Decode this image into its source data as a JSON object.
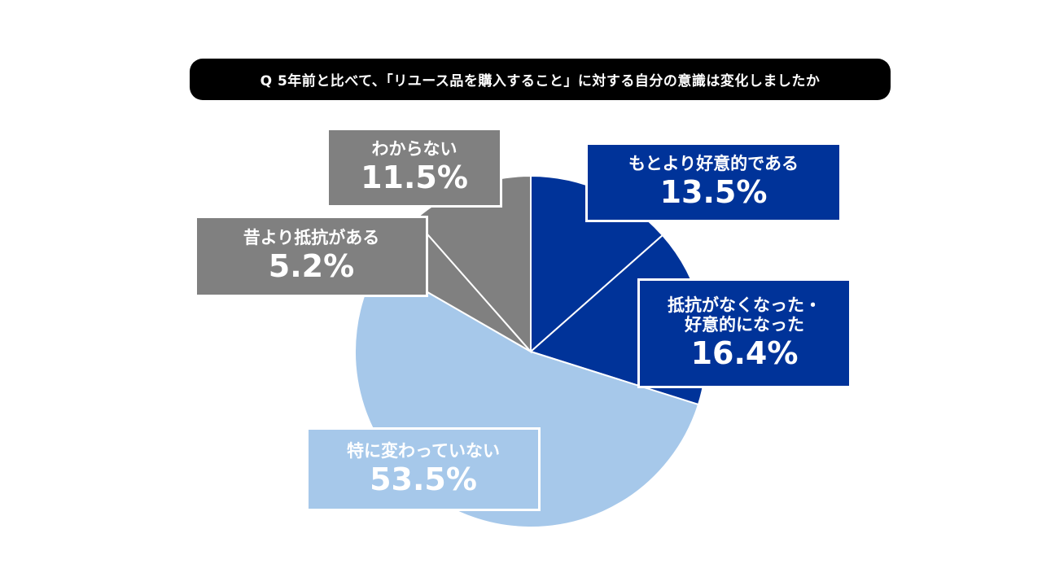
{
  "title": "Q 5年前と比べて、「リユース品を購入すること」に対する自分の意識は変化しましたか",
  "chart_data": {
    "type": "pie",
    "start_angle_deg": 0,
    "direction": "clockwise",
    "slices": [
      {
        "label": "もとより好意的である",
        "value": 13.5,
        "value_label": "13.5%",
        "color": "#003399",
        "label_color": "#003399"
      },
      {
        "label": "抵抗がなくなった・\n好意的になった",
        "value": 16.4,
        "value_label": "16.4%",
        "color": "#003399",
        "label_color": "#003399"
      },
      {
        "label": "特に変わっていない",
        "value": 53.5,
        "value_label": "53.5%",
        "color": "#a6c8ea",
        "label_color": "#a6c8ea"
      },
      {
        "label": "昔より抵抗がある",
        "value": 5.2,
        "value_label": "5.2%",
        "color": "#808080",
        "label_color": "#808080"
      },
      {
        "label": "わからない",
        "value": 11.5,
        "value_label": "11.5%",
        "color": "#808080",
        "label_color": "#808080"
      }
    ]
  }
}
